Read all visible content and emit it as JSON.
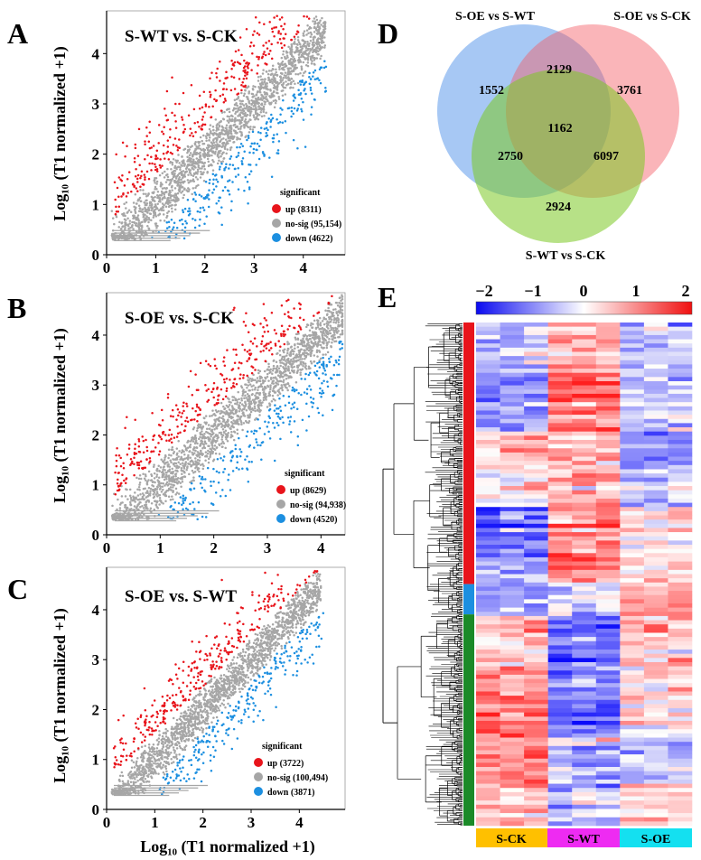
{
  "chart_data": [
    {
      "type": "scatter",
      "panel_label": "A",
      "title": "S-WT vs. S-CK",
      "ylabel": "Log₁₀ (T1 normalized +1)",
      "xlim": [
        0,
        4.85
      ],
      "ylim": [
        0,
        4.85
      ],
      "x_ticks": [
        0,
        1,
        2,
        3,
        4
      ],
      "y_ticks": [
        0,
        1,
        2,
        3,
        4
      ],
      "legend_title": "significant",
      "series": [
        {
          "name": "up (8311)",
          "color": "#e8141b"
        },
        {
          "name": "no-sig (95,154)",
          "color": "#a6a6a6"
        },
        {
          "name": "down (4622)",
          "color": "#1c8fe0"
        }
      ]
    },
    {
      "type": "scatter",
      "panel_label": "B",
      "title": "S-OE vs. S-CK",
      "ylabel": "Log₁₀ (T1 normalized +1)",
      "xlim": [
        0,
        4.45
      ],
      "ylim": [
        0,
        4.85
      ],
      "x_ticks": [
        0,
        1,
        2,
        3,
        4
      ],
      "y_ticks": [
        0,
        1,
        2,
        3,
        4
      ],
      "legend_title": "significant",
      "series": [
        {
          "name": "up (8629)",
          "color": "#e8141b"
        },
        {
          "name": "no-sig (94,938)",
          "color": "#a6a6a6"
        },
        {
          "name": "down (4520)",
          "color": "#1c8fe0"
        }
      ]
    },
    {
      "type": "scatter",
      "panel_label": "C",
      "title": "S-OE vs. S-WT",
      "ylabel": "Log₁₀ (T1 normalized +1)",
      "xlabel": "Log₁₀ (T1 normalized +1)",
      "xlim": [
        0,
        4.95
      ],
      "ylim": [
        0,
        4.85
      ],
      "x_ticks": [
        0,
        1,
        2,
        3,
        4
      ],
      "y_ticks": [
        0,
        1,
        2,
        3,
        4
      ],
      "legend_title": "significant",
      "series": [
        {
          "name": "up (3722)",
          "color": "#e8141b"
        },
        {
          "name": "no-sig (100,494)",
          "color": "#a6a6a6"
        },
        {
          "name": "down (3871)",
          "color": "#1c8fe0"
        }
      ]
    },
    {
      "type": "venn",
      "panel_label": "D",
      "sets": [
        {
          "name": "S-OE vs S-WT",
          "color": "#3b86e6"
        },
        {
          "name": "S-OE vs S-CK",
          "color": "#f45b63"
        },
        {
          "name": "S-WT vs S-CK",
          "color": "#7cc924"
        }
      ],
      "regions": {
        "oe_wt_only": 1552,
        "oe_ck_only": 3761,
        "wt_ck_only": 2924,
        "oe_wt_and_oe_ck": 2129,
        "oe_wt_and_wt_ck": 2750,
        "oe_ck_and_wt_ck": 6097,
        "all_three": 1162
      }
    },
    {
      "type": "heatmap",
      "panel_label": "E",
      "colorbar_ticks": [
        "−2",
        "−1",
        "0",
        "1",
        "2"
      ],
      "colorbar_range": [
        -2,
        2
      ],
      "groups": [
        {
          "name": "S-CK",
          "color": "#ffc000"
        },
        {
          "name": "S-WT",
          "color": "#ee2bf2"
        },
        {
          "name": "S-OE",
          "color": "#14e0f0"
        }
      ],
      "columns_per_group": 3,
      "row_clusters": [
        {
          "color": "#e8141b",
          "fraction": 0.52
        },
        {
          "color": "#1c8fe0",
          "fraction": 0.06
        },
        {
          "color": "#1b8a28",
          "fraction": 0.42
        }
      ]
    }
  ]
}
